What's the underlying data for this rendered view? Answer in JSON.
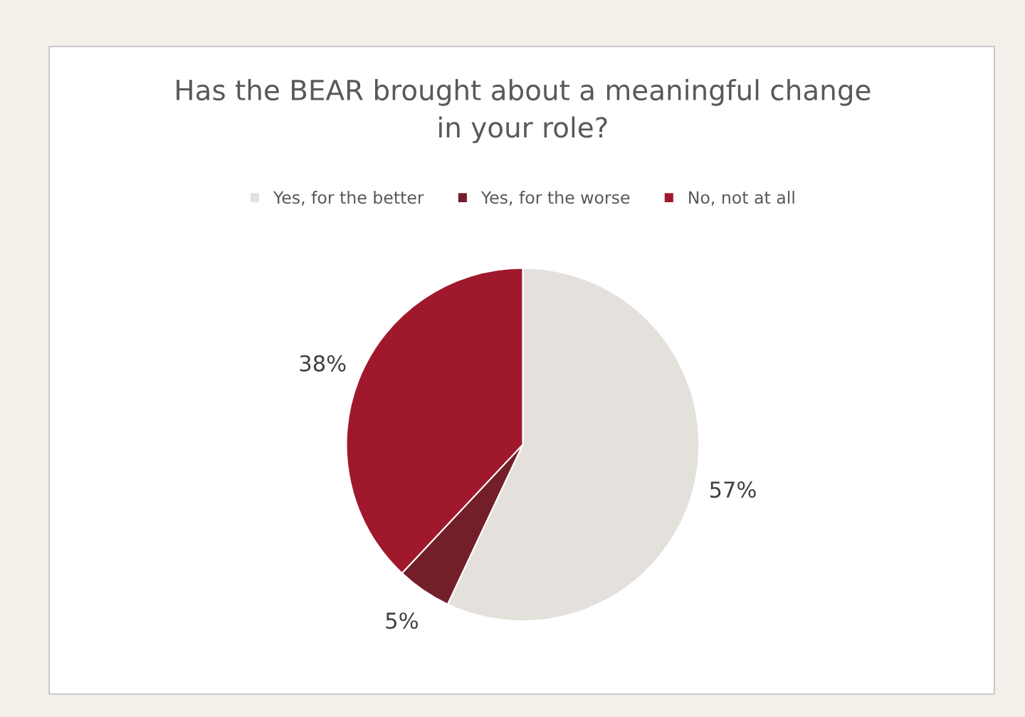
{
  "chart_data": {
    "type": "pie",
    "title": "Has the BEAR brought about a meaningful change\nin your role?",
    "categories": [
      "Yes, for the better",
      "Yes, for the worse",
      "No, not at all"
    ],
    "values": [
      57,
      5,
      38
    ],
    "colors": [
      "#e4e1dc",
      "#731f2a",
      "#a0182c"
    ],
    "value_labels": [
      "57%",
      "5%",
      "38%"
    ],
    "legend": "top"
  }
}
